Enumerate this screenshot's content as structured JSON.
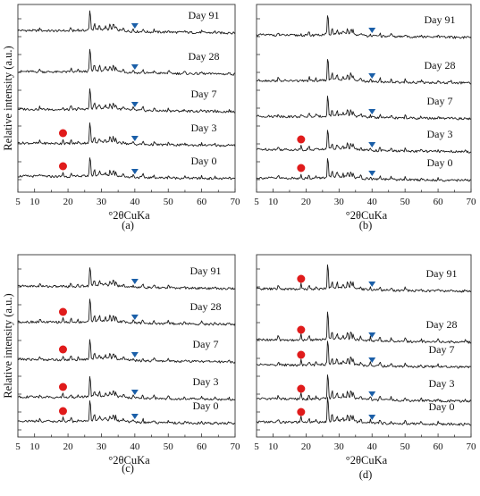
{
  "figure": {
    "x_axis_label": "°2θCuKa",
    "y_axis_label": "Relative intensity (a.u.)",
    "x_ticks": [
      "5",
      "10",
      "20",
      "30",
      "40",
      "50",
      "60",
      "70"
    ],
    "markers": {
      "circle_color": "#e01b1b",
      "triangle_color": "#1b5fa8",
      "circle_icon": "red-circle-marker",
      "triangle_icon": "blue-down-triangle-marker"
    }
  },
  "chart_data": [
    {
      "panel": "(a)",
      "type": "line",
      "xlim": [
        5,
        70
      ],
      "xlabel": "°2θCuKa",
      "ylabel": "Relative intensity (a.u.)",
      "series": [
        {
          "name": "Day 91",
          "circle_2theta": null,
          "triangle_2theta": 40
        },
        {
          "name": "Day 28",
          "circle_2theta": null,
          "triangle_2theta": 40
        },
        {
          "name": "Day 7",
          "circle_2theta": null,
          "triangle_2theta": 40
        },
        {
          "name": "Day 3",
          "circle_2theta": 18.5,
          "triangle_2theta": 40
        },
        {
          "name": "Day 0",
          "circle_2theta": 18.5,
          "triangle_2theta": 40
        }
      ]
    },
    {
      "panel": "(b)",
      "type": "line",
      "xlim": [
        5,
        70
      ],
      "xlabel": "°2θCuKa",
      "ylabel": "",
      "series": [
        {
          "name": "Day 91",
          "circle_2theta": null,
          "triangle_2theta": 40
        },
        {
          "name": "Day 28",
          "circle_2theta": null,
          "triangle_2theta": 40
        },
        {
          "name": "Day 7",
          "circle_2theta": null,
          "triangle_2theta": 40
        },
        {
          "name": "Day 3",
          "circle_2theta": 18.5,
          "triangle_2theta": 40
        },
        {
          "name": "Day 0",
          "circle_2theta": 18.5,
          "triangle_2theta": 40
        }
      ]
    },
    {
      "panel": "(c)",
      "type": "line",
      "xlim": [
        5,
        70
      ],
      "xlabel": "°2θCuKa",
      "ylabel": "Relative intensity (a.u.)",
      "series": [
        {
          "name": "Day 91",
          "circle_2theta": null,
          "triangle_2theta": 40
        },
        {
          "name": "Day 28",
          "circle_2theta": 18.5,
          "triangle_2theta": 40
        },
        {
          "name": "Day 7",
          "circle_2theta": 18.5,
          "triangle_2theta": 40
        },
        {
          "name": "Day 3",
          "circle_2theta": 18.5,
          "triangle_2theta": 40
        },
        {
          "name": "Day 0",
          "circle_2theta": 18.5,
          "triangle_2theta": 40
        }
      ]
    },
    {
      "panel": "(d)",
      "type": "line",
      "xlim": [
        5,
        70
      ],
      "xlabel": "°2θCuKa",
      "ylabel": "",
      "series": [
        {
          "name": "Day 91",
          "circle_2theta": 18.5,
          "triangle_2theta": 40
        },
        {
          "name": "Day 28",
          "circle_2theta": 18.5,
          "triangle_2theta": 40
        },
        {
          "name": "Day 7",
          "circle_2theta": 18.5,
          "triangle_2theta": 40
        },
        {
          "name": "Day 3",
          "circle_2theta": 18.5,
          "triangle_2theta": 40
        },
        {
          "name": "Day 0",
          "circle_2theta": 18.5,
          "triangle_2theta": 40
        }
      ]
    }
  ]
}
